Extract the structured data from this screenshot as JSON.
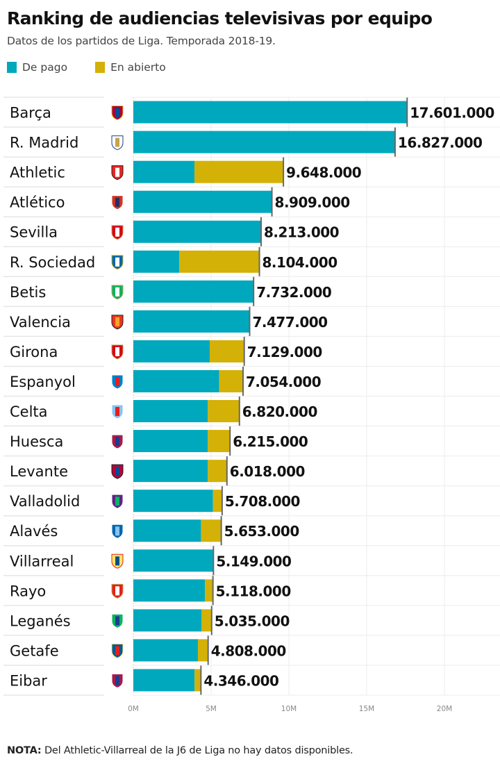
{
  "header": {
    "title": "Ranking de audiencias televisivas por equipo",
    "subtitle": "Datos de los partidos de Liga. Temporada 2018-19."
  },
  "legend": {
    "items": [
      {
        "label": "De pago",
        "color": "#00a8bd"
      },
      {
        "label": "En abierto",
        "color": "#d4b106"
      }
    ]
  },
  "footer": {
    "note_label": "NOTA:",
    "note_text": " Del Athletic-Villarreal de la J6 de Liga no hay datos disponibles."
  },
  "chart_data": {
    "type": "bar",
    "orientation": "horizontal",
    "stacked": true,
    "title": "Ranking de audiencias televisivas por equipo",
    "subtitle": "Datos de los partidos de Liga. Temporada 2018-19.",
    "xlabel": "",
    "ylabel": "",
    "xlim": [
      0,
      24
    ],
    "x_unit": "M",
    "x_ticks": [
      0,
      5,
      10,
      15,
      20
    ],
    "x_tick_labels": [
      "0M",
      "5M",
      "10M",
      "15M",
      "20M"
    ],
    "grid": true,
    "legend_position": "top-left",
    "categories": [
      "Barça",
      "R. Madrid",
      "Athletic",
      "Atlético",
      "Sevilla",
      "R. Sociedad",
      "Betis",
      "Valencia",
      "Girona",
      "Espanyol",
      "Celta",
      "Huesca",
      "Levante",
      "Valladolid",
      "Alavés",
      "Villarreal",
      "Rayo",
      "Leganés",
      "Getafe",
      "Eibar"
    ],
    "crest_icons": [
      "barcelona-crest-icon",
      "real-madrid-crest-icon",
      "athletic-crest-icon",
      "atletico-crest-icon",
      "sevilla-crest-icon",
      "real-sociedad-crest-icon",
      "betis-crest-icon",
      "valencia-crest-icon",
      "girona-crest-icon",
      "espanyol-crest-icon",
      "celta-crest-icon",
      "huesca-crest-icon",
      "levante-crest-icon",
      "valladolid-crest-icon",
      "alaves-crest-icon",
      "villarreal-crest-icon",
      "rayo-crest-icon",
      "leganes-crest-icon",
      "getafe-crest-icon",
      "eibar-crest-icon"
    ],
    "crest_colors": [
      [
        "#a50044",
        "#004d98",
        "#edbb00"
      ],
      [
        "#ffffff",
        "#c5a44b",
        "#1b3d8f"
      ],
      [
        "#ee2523",
        "#ffffff",
        "#1d1d1b"
      ],
      [
        "#cb3524",
        "#272e61",
        "#ffffff"
      ],
      [
        "#d8001a",
        "#ffffff",
        "#c5a44b"
      ],
      [
        "#0067b1",
        "#ffffff",
        "#e6b800"
      ],
      [
        "#0bb363",
        "#ffffff",
        "#c5a44b"
      ],
      [
        "#ee3524",
        "#f5a623",
        "#1d1d1b"
      ],
      [
        "#d8001a",
        "#ffffff",
        "#c5a44b"
      ],
      [
        "#007fc8",
        "#e4201f",
        "#ffffff"
      ],
      [
        "#8ac3ee",
        "#e4201f",
        "#ffffff"
      ],
      [
        "#a61b4a",
        "#1b3d8f",
        "#ffffff"
      ],
      [
        "#b5053e",
        "#004b93",
        "#1d1d1b"
      ],
      [
        "#5c2483",
        "#0bb363",
        "#ffffff"
      ],
      [
        "#0067b1",
        "#8ac3ee",
        "#ffffff"
      ],
      [
        "#ffe667",
        "#005187",
        "#e4201f"
      ],
      [
        "#e4201f",
        "#ffffff",
        "#c5a44b"
      ],
      [
        "#0bb363",
        "#1b3d8f",
        "#ffffff"
      ],
      [
        "#005999",
        "#e4201f",
        "#ffe667"
      ],
      [
        "#a61b4a",
        "#1b3d8f",
        "#ffffff"
      ]
    ],
    "series": [
      {
        "name": "De pago",
        "color": "#00a8bd",
        "values": [
          17.601,
          16.827,
          3.93,
          8.909,
          8.213,
          2.95,
          7.732,
          7.477,
          4.91,
          5.52,
          4.79,
          4.79,
          4.79,
          5.12,
          4.35,
          5.149,
          4.6,
          4.39,
          4.15,
          3.94
        ]
      },
      {
        "name": "En abierto",
        "color": "#d4b106",
        "values": [
          0,
          0,
          5.718,
          0,
          0,
          5.154,
          0,
          0,
          2.219,
          1.534,
          2.03,
          1.425,
          1.228,
          0.588,
          1.303,
          0,
          0.518,
          0.645,
          0.658,
          0.406
        ]
      }
    ],
    "totals": [
      17.601,
      16.827,
      9.648,
      8.909,
      8.213,
      8.104,
      7.732,
      7.477,
      7.129,
      7.054,
      6.82,
      6.215,
      6.018,
      5.708,
      5.653,
      5.149,
      5.118,
      5.035,
      4.808,
      4.346
    ],
    "data_labels": [
      "17.601.000",
      "16.827.000",
      "9.648.000",
      "8.909.000",
      "8.213.000",
      "8.104.000",
      "7.732.000",
      "7.477.000",
      "7.129.000",
      "7.054.000",
      "6.820.000",
      "6.215.000",
      "6.018.000",
      "5.708.000",
      "5.653.000",
      "5.149.000",
      "5.118.000",
      "5.035.000",
      "4.808.000",
      "4.346.000"
    ]
  }
}
